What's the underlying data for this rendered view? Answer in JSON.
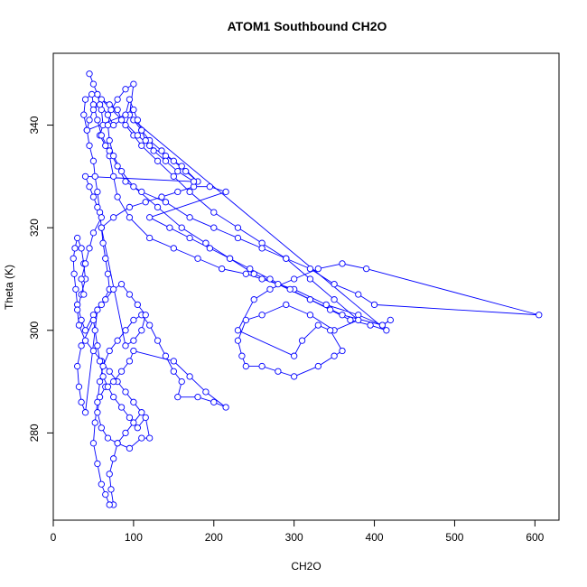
{
  "chart_data": {
    "type": "scatter",
    "title": "ATOM1 Southbound CH2O",
    "xlabel": "CH2O",
    "ylabel": "Theta (K)",
    "xlim": [
      0,
      630
    ],
    "ylim": [
      263,
      354
    ],
    "x_ticks": [
      0,
      100,
      200,
      300,
      400,
      500,
      600
    ],
    "y_ticks": [
      280,
      300,
      320,
      340
    ],
    "grid": false,
    "legend": "none",
    "marker": "open-circle",
    "connected": true,
    "color": "#0000ff",
    "series": [
      {
        "points": [
          [
            45,
            350
          ],
          [
            50,
            348
          ],
          [
            55,
            346
          ],
          [
            60,
            343
          ],
          [
            62,
            340
          ],
          [
            58,
            338
          ],
          [
            65,
            336
          ],
          [
            70,
            334
          ],
          [
            75,
            330
          ],
          [
            80,
            326
          ],
          [
            95,
            322
          ],
          [
            120,
            318
          ],
          [
            150,
            316
          ],
          [
            180,
            314
          ],
          [
            210,
            312
          ],
          [
            240,
            311
          ],
          [
            260,
            310
          ],
          [
            300,
            308
          ],
          [
            340,
            305
          ],
          [
            380,
            303
          ],
          [
            410,
            301
          ],
          [
            420,
            302
          ],
          [
            410,
            301
          ],
          [
            360,
            303
          ],
          [
            320,
            306
          ],
          [
            280,
            309
          ],
          [
            250,
            311
          ],
          [
            220,
            314
          ],
          [
            190,
            317
          ],
          [
            160,
            320
          ],
          [
            130,
            324
          ],
          [
            100,
            328
          ],
          [
            85,
            331
          ],
          [
            75,
            334
          ],
          [
            70,
            337
          ],
          [
            68,
            340
          ],
          [
            72,
            343
          ],
          [
            80,
            345
          ],
          [
            90,
            347
          ],
          [
            100,
            348
          ],
          [
            95,
            342
          ],
          [
            90,
            340
          ],
          [
            100,
            338
          ],
          [
            110,
            336
          ],
          [
            130,
            333
          ],
          [
            150,
            330
          ],
          [
            170,
            327
          ],
          [
            200,
            323
          ],
          [
            230,
            320
          ],
          [
            260,
            317
          ],
          [
            290,
            314
          ],
          [
            320,
            310
          ],
          [
            350,
            306
          ],
          [
            380,
            302
          ],
          [
            350,
            300
          ],
          [
            320,
            303
          ],
          [
            290,
            305
          ],
          [
            260,
            303
          ],
          [
            240,
            302
          ],
          [
            230,
            298
          ],
          [
            235,
            295
          ],
          [
            240,
            293
          ],
          [
            260,
            293
          ],
          [
            280,
            292
          ],
          [
            300,
            291
          ],
          [
            330,
            293
          ],
          [
            350,
            295
          ],
          [
            360,
            296
          ],
          [
            345,
            300
          ],
          [
            330,
            301
          ],
          [
            310,
            298
          ],
          [
            300,
            295
          ],
          [
            230,
            300
          ],
          [
            250,
            306
          ],
          [
            270,
            308
          ],
          [
            300,
            310
          ],
          [
            330,
            312
          ],
          [
            360,
            313
          ],
          [
            390,
            312
          ],
          [
            605,
            303
          ],
          [
            400,
            305
          ],
          [
            380,
            307
          ],
          [
            350,
            309
          ],
          [
            320,
            312
          ],
          [
            290,
            314
          ],
          [
            260,
            316
          ],
          [
            230,
            318
          ],
          [
            200,
            320
          ],
          [
            170,
            322
          ],
          [
            140,
            325
          ],
          [
            110,
            327
          ],
          [
            90,
            329
          ],
          [
            80,
            332
          ],
          [
            70,
            335
          ],
          [
            60,
            338
          ],
          [
            55,
            341
          ],
          [
            50,
            344
          ],
          [
            48,
            346
          ],
          [
            40,
            345
          ],
          [
            38,
            342
          ],
          [
            42,
            339
          ],
          [
            45,
            336
          ],
          [
            50,
            333
          ],
          [
            52,
            330
          ],
          [
            55,
            327
          ],
          [
            58,
            323
          ],
          [
            60,
            320
          ],
          [
            62,
            317
          ],
          [
            65,
            314
          ],
          [
            68,
            311
          ],
          [
            70,
            308
          ],
          [
            60,
            305
          ],
          [
            50,
            303
          ],
          [
            40,
            300
          ],
          [
            35,
            302
          ],
          [
            30,
            305
          ],
          [
            28,
            308
          ],
          [
            26,
            311
          ],
          [
            25,
            314
          ],
          [
            27,
            316
          ],
          [
            30,
            318
          ],
          [
            35,
            316
          ],
          [
            38,
            313
          ],
          [
            40,
            310
          ],
          [
            35,
            307
          ],
          [
            30,
            304
          ],
          [
            32,
            301
          ],
          [
            40,
            298
          ],
          [
            50,
            296
          ],
          [
            60,
            294
          ],
          [
            70,
            292
          ],
          [
            80,
            290
          ],
          [
            90,
            288
          ],
          [
            100,
            286
          ],
          [
            110,
            284
          ],
          [
            100,
            282
          ],
          [
            90,
            280
          ],
          [
            80,
            278
          ],
          [
            75,
            275
          ],
          [
            70,
            272
          ],
          [
            72,
            269
          ],
          [
            75,
            266
          ],
          [
            70,
            266
          ],
          [
            65,
            268
          ],
          [
            60,
            270
          ],
          [
            55,
            274
          ],
          [
            50,
            278
          ],
          [
            52,
            282
          ],
          [
            55,
            286
          ],
          [
            58,
            290
          ],
          [
            62,
            293
          ],
          [
            70,
            296
          ],
          [
            80,
            298
          ],
          [
            90,
            300
          ],
          [
            100,
            302
          ],
          [
            110,
            303
          ],
          [
            120,
            301
          ],
          [
            130,
            298
          ],
          [
            140,
            295
          ],
          [
            150,
            292
          ],
          [
            160,
            290
          ],
          [
            155,
            287
          ],
          [
            180,
            287
          ],
          [
            200,
            286
          ],
          [
            215,
            285
          ],
          [
            190,
            288
          ],
          [
            170,
            291
          ],
          [
            150,
            294
          ],
          [
            100,
            296
          ],
          [
            95,
            294
          ],
          [
            85,
            292
          ],
          [
            75,
            290
          ],
          [
            65,
            289
          ],
          [
            58,
            287
          ],
          [
            55,
            284
          ],
          [
            60,
            281
          ],
          [
            68,
            279
          ],
          [
            80,
            278
          ],
          [
            95,
            277
          ],
          [
            110,
            279
          ],
          [
            120,
            279
          ],
          [
            115,
            283
          ],
          [
            105,
            281
          ],
          [
            95,
            283
          ],
          [
            85,
            285
          ],
          [
            75,
            287
          ],
          [
            68,
            289
          ],
          [
            62,
            291
          ],
          [
            58,
            294
          ],
          [
            55,
            297
          ],
          [
            52,
            300
          ],
          [
            50,
            302
          ],
          [
            35,
            297
          ],
          [
            30,
            293
          ],
          [
            32,
            289
          ],
          [
            35,
            286
          ],
          [
            40,
            284
          ],
          [
            55,
            304
          ],
          [
            65,
            306
          ],
          [
            75,
            308
          ],
          [
            85,
            309
          ],
          [
            95,
            307
          ],
          [
            105,
            305
          ],
          [
            115,
            303
          ],
          [
            110,
            300
          ],
          [
            100,
            298
          ],
          [
            90,
            297
          ],
          [
            60,
            320
          ],
          [
            75,
            322
          ],
          [
            95,
            324
          ],
          [
            115,
            325
          ],
          [
            135,
            326
          ],
          [
            155,
            327
          ],
          [
            175,
            328
          ],
          [
            195,
            328
          ],
          [
            215,
            327
          ],
          [
            120,
            322
          ],
          [
            145,
            320
          ],
          [
            170,
            318
          ],
          [
            195,
            316
          ],
          [
            220,
            314
          ],
          [
            245,
            312
          ],
          [
            270,
            310
          ],
          [
            295,
            308
          ],
          [
            320,
            306
          ],
          [
            345,
            304
          ],
          [
            370,
            302
          ],
          [
            395,
            301
          ],
          [
            415,
            300
          ],
          [
            100,
            341
          ],
          [
            110,
            339
          ],
          [
            120,
            337
          ],
          [
            135,
            335
          ],
          [
            150,
            333
          ],
          [
            165,
            331
          ],
          [
            180,
            329
          ],
          [
            160,
            332
          ],
          [
            140,
            334
          ],
          [
            120,
            336
          ],
          [
            105,
            338
          ],
          [
            60,
            345
          ],
          [
            70,
            344
          ],
          [
            80,
            343
          ],
          [
            85,
            341
          ],
          [
            75,
            340
          ],
          [
            68,
            342
          ],
          [
            58,
            344
          ],
          [
            50,
            343
          ],
          [
            45,
            341
          ],
          [
            42,
            339
          ],
          [
            90,
            342
          ],
          [
            95,
            345
          ],
          [
            100,
            343
          ],
          [
            105,
            341
          ],
          [
            110,
            339
          ],
          [
            115,
            337
          ],
          [
            125,
            335
          ],
          [
            140,
            333
          ],
          [
            155,
            331
          ],
          [
            175,
            329
          ],
          [
            40,
            330
          ],
          [
            45,
            328
          ],
          [
            50,
            326
          ],
          [
            55,
            324
          ],
          [
            60,
            322
          ],
          [
            50,
            319
          ],
          [
            45,
            316
          ],
          [
            40,
            313
          ],
          [
            35,
            310
          ],
          [
            38,
            307
          ]
        ]
      }
    ]
  }
}
